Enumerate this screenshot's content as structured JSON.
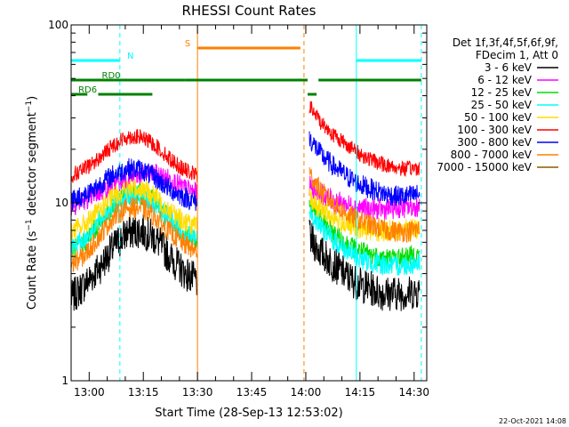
{
  "chart_data": {
    "type": "line",
    "title": "RHESSI Count Rates",
    "xlabel": "Start Time (28-Sep-13 12:53:02)",
    "ylabel": "Count Rate (s⁻¹ detector segment⁻¹)",
    "ylabel_parts": {
      "main": "Count Rate (s",
      "exp1": "−1",
      "mid": " detector segment",
      "exp2": "−1",
      "end": ")"
    },
    "yscale": "log",
    "ylim": [
      1,
      100
    ],
    "xlim_minutes": [
      -5,
      93.5
    ],
    "x_ticks": [
      {
        "m": 0,
        "label": "13:00"
      },
      {
        "m": 15,
        "label": "13:15"
      },
      {
        "m": 30,
        "label": "13:30"
      },
      {
        "m": 45,
        "label": "13:45"
      },
      {
        "m": 60,
        "label": "14:00"
      },
      {
        "m": 75,
        "label": "14:15"
      },
      {
        "m": 90,
        "label": "14:30"
      }
    ],
    "y_ticks": [
      {
        "v": 1,
        "label": "1"
      },
      {
        "v": 10,
        "label": "10"
      },
      {
        "v": 100,
        "label": "100"
      }
    ],
    "grid": false,
    "legend_placement": "right",
    "legend_header": [
      "Det 1f,3f,4f,5f,6f,9f,",
      "FDecim 1, Att 0"
    ],
    "series": [
      {
        "name": "3 - 6 keV",
        "color": "#000000",
        "pre": [
          2.9,
          3.5,
          4.3,
          5.6,
          6.8,
          7.0,
          6.3,
          5.0,
          4.1,
          3.6
        ],
        "post": [
          6.4,
          5.2,
          4.5,
          3.9,
          3.5,
          3.3,
          3.1,
          3.1,
          3.1,
          3.2
        ]
      },
      {
        "name": "6 - 12 keV",
        "color": "#ff00ff",
        "pre": [
          9.6,
          10.4,
          11.5,
          12.6,
          13.7,
          14.3,
          14.5,
          13.6,
          12.1,
          11.3
        ],
        "post": [
          12.5,
          11.2,
          10.3,
          9.8,
          9.4,
          9.2,
          9.2,
          9.3,
          9.4,
          9.6
        ]
      },
      {
        "name": "12 - 25 keV",
        "color": "#00dd00",
        "pre": [
          5.3,
          6.1,
          7.6,
          9.5,
          11.0,
          11.2,
          10.1,
          8.3,
          6.9,
          6.1
        ],
        "post": [
          9.8,
          7.9,
          6.7,
          5.9,
          5.4,
          5.1,
          4.9,
          4.9,
          5.0,
          5.1
        ]
      },
      {
        "name": "25 - 50 keV",
        "color": "#00ffff",
        "pre": [
          5.6,
          6.3,
          7.9,
          9.7,
          10.8,
          10.9,
          9.6,
          8.0,
          6.8,
          6.2
        ],
        "post": [
          9.0,
          7.3,
          6.1,
          5.4,
          4.9,
          4.6,
          4.5,
          4.4,
          4.5,
          4.6
        ]
      },
      {
        "name": "50 - 100 keV",
        "color": "#ffdd00",
        "pre": [
          6.9,
          7.6,
          9.0,
          10.9,
          12.0,
          12.1,
          10.8,
          9.1,
          7.9,
          7.3
        ],
        "post": [
          10.6,
          9.1,
          8.2,
          7.6,
          7.2,
          7.0,
          6.9,
          7.0,
          7.1,
          7.2
        ]
      },
      {
        "name": "100 - 300 keV",
        "color": "#ff0000",
        "pre": [
          14.2,
          15.5,
          17.8,
          21.1,
          23.5,
          23.4,
          21.0,
          17.8,
          15.4,
          14.2
        ],
        "post": [
          35.0,
          28.0,
          24.0,
          21.5,
          19.0,
          17.5,
          16.5,
          15.8,
          15.5,
          15.8
        ]
      },
      {
        "name": "300 - 800 keV",
        "color": "#0000ff",
        "pre": [
          10.3,
          11.1,
          12.6,
          14.4,
          15.6,
          15.4,
          13.8,
          12.0,
          10.8,
          10.1
        ],
        "post": [
          23.0,
          18.5,
          16.0,
          14.2,
          12.8,
          12.0,
          11.3,
          10.9,
          10.9,
          11.2
        ]
      },
      {
        "name": "800 - 7000 keV",
        "color": "#ff8000",
        "pre": [
          4.5,
          5.1,
          6.5,
          8.3,
          9.4,
          9.4,
          8.3,
          6.9,
          5.9,
          5.3
        ],
        "post": [
          14.5,
          11.5,
          9.8,
          8.7,
          8.0,
          7.5,
          7.1,
          6.9,
          6.9,
          7.1
        ]
      },
      {
        "name": "7000 - 15000 keV",
        "color": "#8b5a00",
        "pre": [],
        "post": []
      }
    ],
    "pre_range_minutes": [
      -5,
      30
    ],
    "post_range_minutes": [
      61,
      91.5
    ],
    "markers": [
      {
        "minute": 8.5,
        "color": "#00ffff",
        "style": "dashed"
      },
      {
        "minute": 30,
        "color": "#ff8000",
        "style": "solid"
      },
      {
        "minute": 59.5,
        "color": "#ff8000",
        "style": "dashed"
      },
      {
        "minute": 74,
        "color": "#00ffff",
        "style": "solid"
      },
      {
        "minute": 92,
        "color": "#00ffff",
        "style": "dashed"
      }
    ],
    "flag_bars": [
      {
        "label": "N",
        "color": "#00ffff",
        "y_frac": 0.1,
        "segments": [
          [
            -5,
            8.5
          ],
          [
            74,
            92
          ]
        ],
        "label_minute": 10.5
      },
      {
        "label": "S",
        "color": "#ff8000",
        "y_frac": 0.065,
        "segments": [
          [
            30,
            58.5
          ]
        ],
        "label_minute": 26.5
      },
      {
        "label": "RD0",
        "color": "#008000",
        "y_frac": 0.155,
        "segments": [
          [
            -5,
            26.5
          ],
          [
            26.5,
            60.5
          ],
          [
            63.5,
            92
          ]
        ],
        "label_minute": 3.5
      },
      {
        "label": "RD6",
        "color": "#008000",
        "y_frac": 0.195,
        "segments": [
          [
            -5,
            -0.5
          ],
          [
            2.5,
            17.5
          ],
          [
            60.5,
            63
          ]
        ],
        "label_minute": -3
      }
    ],
    "footer_date": "22-Oct-2021 14:08"
  }
}
